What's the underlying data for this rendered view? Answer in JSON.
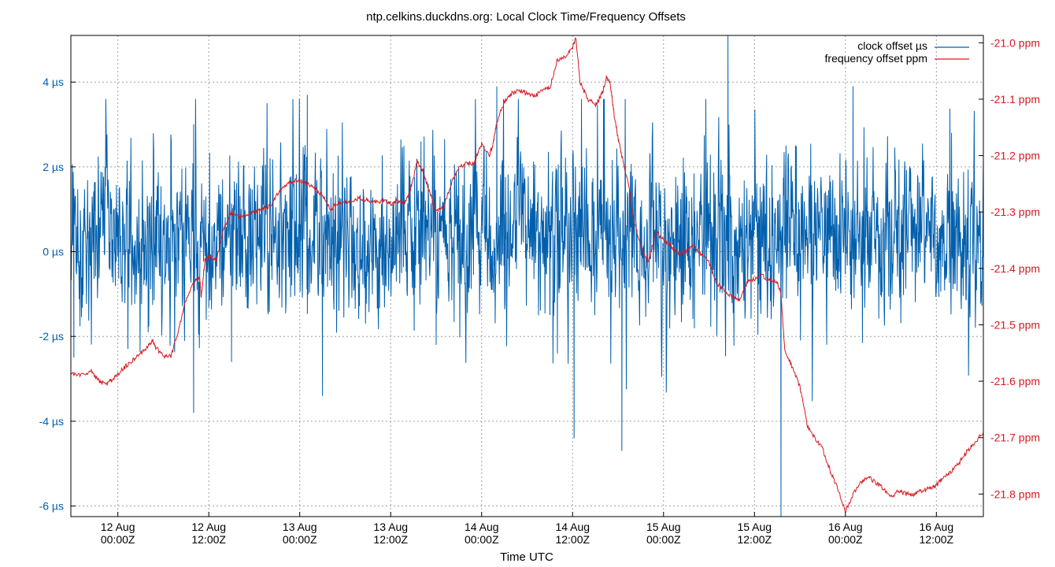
{
  "chart_data": {
    "type": "line",
    "title": "ntp.celkins.duckdns.org: Local Clock Time/Frequency Offsets",
    "xlabel": "Time UTC",
    "x_ticks": [
      {
        "line1": "12 Aug",
        "line2": "00:00Z",
        "hours": 0
      },
      {
        "line1": "12 Aug",
        "line2": "12:00Z",
        "hours": 12
      },
      {
        "line1": "13 Aug",
        "line2": "00:00Z",
        "hours": 24
      },
      {
        "line1": "13 Aug",
        "line2": "12:00Z",
        "hours": 36
      },
      {
        "line1": "14 Aug",
        "line2": "00:00Z",
        "hours": 48
      },
      {
        "line1": "14 Aug",
        "line2": "12:00Z",
        "hours": 60
      },
      {
        "line1": "15 Aug",
        "line2": "00:00Z",
        "hours": 72
      },
      {
        "line1": "15 Aug",
        "line2": "12:00Z",
        "hours": 84
      },
      {
        "line1": "16 Aug",
        "line2": "00:00Z",
        "hours": 96
      },
      {
        "line1": "16 Aug",
        "line2": "12:00Z",
        "hours": 108
      }
    ],
    "xlim_hours": [
      -6.2,
      114.2
    ],
    "y_left": {
      "range": [
        -6.25,
        5.1
      ],
      "ticks": [
        {
          "value": 4,
          "label": "4 µs"
        },
        {
          "value": 2,
          "label": "2 µs"
        },
        {
          "value": 0,
          "label": "0 µs"
        },
        {
          "value": -2,
          "label": "-2 µs"
        },
        {
          "value": -4,
          "label": "-4 µs"
        },
        {
          "value": -6,
          "label": "-6 µs"
        }
      ]
    },
    "y_right": {
      "range": [
        -21.84,
        -20.987
      ],
      "ticks": [
        {
          "value": -21.0,
          "label": "-21.0 ppm"
        },
        {
          "value": -21.1,
          "label": "-21.1 ppm"
        },
        {
          "value": -21.2,
          "label": "-21.2 ppm"
        },
        {
          "value": -21.3,
          "label": "-21.3 ppm"
        },
        {
          "value": -21.4,
          "label": "-21.4 ppm"
        },
        {
          "value": -21.5,
          "label": "-21.5 ppm"
        },
        {
          "value": -21.6,
          "label": "-21.6 ppm"
        },
        {
          "value": -21.7,
          "label": "-21.7 ppm"
        },
        {
          "value": -21.8,
          "label": "-21.8 ppm"
        }
      ]
    },
    "grid": true,
    "legend_position": "top-right",
    "series": [
      {
        "name": "clock offset µs",
        "axis": "left",
        "color": "#005fad",
        "noise_amplitude": 1.3,
        "spike_extremes": [
          {
            "hours": -5.8,
            "value": -2.5
          },
          {
            "hours": 4.0,
            "value": -1.9
          },
          {
            "hours": 10.0,
            "value": 3.0
          },
          {
            "hours": 10.0,
            "value": -3.8
          },
          {
            "hours": 15.0,
            "value": -2.6
          },
          {
            "hours": 25.0,
            "value": 3.7
          },
          {
            "hours": 27.0,
            "value": -3.4
          },
          {
            "hours": 40.0,
            "value": 2.6
          },
          {
            "hours": 42.0,
            "value": -2.2
          },
          {
            "hours": 50.0,
            "value": 3.9
          },
          {
            "hours": 58.0,
            "value": -2.4
          },
          {
            "hours": 60.2,
            "value": -4.4
          },
          {
            "hours": 66.5,
            "value": -4.7
          },
          {
            "hours": 80.5,
            "value": 5.1
          },
          {
            "hours": 87.5,
            "value": -6.3
          },
          {
            "hours": 97.0,
            "value": 3.9
          },
          {
            "hours": 110.0,
            "value": 2.8
          }
        ]
      },
      {
        "name": "frequency offset ppm",
        "axis": "right",
        "color": "#d61a22",
        "points": [
          [
            -6.2,
            -21.585
          ],
          [
            -5.0,
            -21.59
          ],
          [
            -3.5,
            -21.583
          ],
          [
            -2.5,
            -21.6
          ],
          [
            -1.5,
            -21.605
          ],
          [
            -0.5,
            -21.595
          ],
          [
            0.5,
            -21.58
          ],
          [
            1.5,
            -21.568
          ],
          [
            2.5,
            -21.558
          ],
          [
            3.5,
            -21.545
          ],
          [
            4.5,
            -21.528
          ],
          [
            5.0,
            -21.54
          ],
          [
            6.0,
            -21.555
          ],
          [
            7.0,
            -21.555
          ],
          [
            8.0,
            -21.51
          ],
          [
            9.0,
            -21.455
          ],
          [
            10.0,
            -21.425
          ],
          [
            10.8,
            -21.415
          ],
          [
            11.0,
            -21.45
          ],
          [
            11.5,
            -21.385
          ],
          [
            12.0,
            -21.38
          ],
          [
            13.0,
            -21.385
          ],
          [
            14.0,
            -21.33
          ],
          [
            15.0,
            -21.3
          ],
          [
            16.0,
            -21.31
          ],
          [
            17.0,
            -21.305
          ],
          [
            18.0,
            -21.3
          ],
          [
            19.0,
            -21.295
          ],
          [
            20.0,
            -21.29
          ],
          [
            21.0,
            -21.27
          ],
          [
            22.0,
            -21.255
          ],
          [
            23.0,
            -21.245
          ],
          [
            24.0,
            -21.245
          ],
          [
            25.0,
            -21.25
          ],
          [
            26.0,
            -21.26
          ],
          [
            27.0,
            -21.27
          ],
          [
            28.0,
            -21.295
          ],
          [
            29.0,
            -21.285
          ],
          [
            30.0,
            -21.283
          ],
          [
            31.0,
            -21.28
          ],
          [
            32.0,
            -21.275
          ],
          [
            33.0,
            -21.28
          ],
          [
            34.0,
            -21.283
          ],
          [
            35.0,
            -21.279
          ],
          [
            36.0,
            -21.285
          ],
          [
            37.0,
            -21.28
          ],
          [
            37.8,
            -21.285
          ],
          [
            38.5,
            -21.265
          ],
          [
            39.0,
            -21.24
          ],
          [
            39.5,
            -21.21
          ],
          [
            40.5,
            -21.235
          ],
          [
            41.0,
            -21.26
          ],
          [
            42.0,
            -21.3
          ],
          [
            43.0,
            -21.29
          ],
          [
            44.0,
            -21.25
          ],
          [
            45.0,
            -21.22
          ],
          [
            46.0,
            -21.215
          ],
          [
            47.0,
            -21.215
          ],
          [
            47.5,
            -21.195
          ],
          [
            48.0,
            -21.18
          ],
          [
            49.0,
            -21.2
          ],
          [
            49.5,
            -21.18
          ],
          [
            50.0,
            -21.14
          ],
          [
            51.0,
            -21.105
          ],
          [
            52.0,
            -21.09
          ],
          [
            53.0,
            -21.085
          ],
          [
            54.0,
            -21.09
          ],
          [
            55.0,
            -21.095
          ],
          [
            56.0,
            -21.085
          ],
          [
            57.0,
            -21.08
          ],
          [
            58.0,
            -21.03
          ],
          [
            59.0,
            -21.025
          ],
          [
            60.0,
            -21.01
          ],
          [
            60.4,
            -20.99
          ],
          [
            61.0,
            -21.07
          ],
          [
            62.0,
            -21.1
          ],
          [
            63.0,
            -21.11
          ],
          [
            63.5,
            -21.1
          ],
          [
            64.0,
            -21.085
          ],
          [
            64.5,
            -21.06
          ],
          [
            65.0,
            -21.075
          ],
          [
            65.5,
            -21.13
          ],
          [
            66.0,
            -21.17
          ],
          [
            66.5,
            -21.2
          ],
          [
            67.5,
            -21.26
          ],
          [
            68.0,
            -21.31
          ],
          [
            69.0,
            -21.36
          ],
          [
            70.0,
            -21.39
          ],
          [
            71.0,
            -21.335
          ],
          [
            72.0,
            -21.35
          ],
          [
            73.0,
            -21.36
          ],
          [
            74.0,
            -21.375
          ],
          [
            75.0,
            -21.37
          ],
          [
            76.0,
            -21.36
          ],
          [
            77.0,
            -21.375
          ],
          [
            78.0,
            -21.39
          ],
          [
            79.0,
            -21.425
          ],
          [
            80.0,
            -21.44
          ],
          [
            81.0,
            -21.45
          ],
          [
            82.0,
            -21.455
          ],
          [
            83.0,
            -21.425
          ],
          [
            84.0,
            -21.418
          ],
          [
            85.0,
            -21.413
          ],
          [
            86.0,
            -21.42
          ],
          [
            87.0,
            -21.425
          ],
          [
            87.5,
            -21.445
          ],
          [
            88.0,
            -21.545
          ],
          [
            89.0,
            -21.575
          ],
          [
            90.0,
            -21.61
          ],
          [
            91.0,
            -21.68
          ],
          [
            92.0,
            -21.7
          ],
          [
            93.0,
            -21.72
          ],
          [
            94.0,
            -21.76
          ],
          [
            95.0,
            -21.79
          ],
          [
            96.0,
            -21.83
          ],
          [
            97.0,
            -21.8
          ],
          [
            98.0,
            -21.78
          ],
          [
            99.0,
            -21.77
          ],
          [
            100.0,
            -21.78
          ],
          [
            101.0,
            -21.79
          ],
          [
            102.0,
            -21.805
          ],
          [
            103.0,
            -21.795
          ],
          [
            104.0,
            -21.8
          ],
          [
            105.0,
            -21.8
          ],
          [
            106.0,
            -21.795
          ],
          [
            107.0,
            -21.79
          ],
          [
            108.0,
            -21.785
          ],
          [
            109.0,
            -21.77
          ],
          [
            110.0,
            -21.76
          ],
          [
            111.0,
            -21.745
          ],
          [
            112.0,
            -21.725
          ],
          [
            113.0,
            -21.71
          ],
          [
            114.2,
            -21.69
          ]
        ]
      }
    ]
  },
  "colors": {
    "left_axis_text": "#005fad",
    "right_axis_text": "#d61a22"
  }
}
